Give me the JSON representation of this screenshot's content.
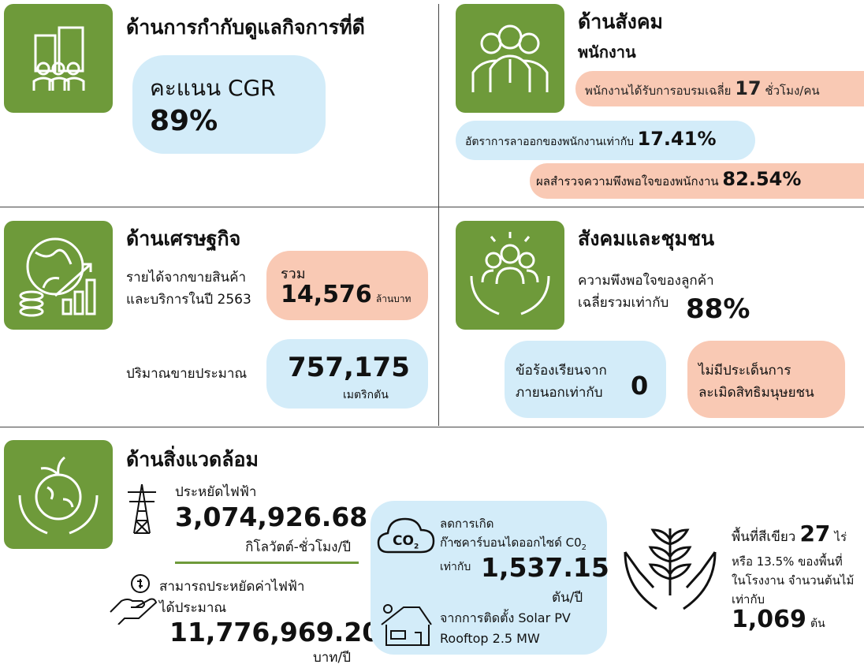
{
  "governance": {
    "title": "ด้านการกำกับดูแลกิจการที่ดี",
    "label": "คะแนน CGR",
    "value": "89%"
  },
  "social": {
    "title": "ด้านสังคม",
    "subtitle": "พนักงาน",
    "items": [
      {
        "text": "พนักงานได้รับการอบรมเฉลี่ย",
        "value": "17",
        "unit": "ชั่วโมง/คน"
      },
      {
        "text": "อัตราการลาออกของพนักงานเท่ากับ",
        "value": "17.41%"
      },
      {
        "text": "ผลสำรวจความพึงพอใจของพนักงาน",
        "value": "82.54%"
      }
    ]
  },
  "economy": {
    "title": "ด้านเศรษฐกิจ",
    "revenue_label": [
      "รายได้จากขายสินค้า",
      "และบริการในปี 2563"
    ],
    "revenue_prefix": "รวม",
    "revenue_value": "14,576",
    "revenue_unit": "ล้านบาท",
    "volume_label": "ปริมาณขายประมาณ",
    "volume_value": "757,175",
    "volume_unit": "เมตริกตัน"
  },
  "community": {
    "title": "สังคมและชุมชน",
    "satisfaction_label": [
      "ความพึงพอใจของลูกค้า",
      "เฉลี่ยรวมเท่ากับ"
    ],
    "satisfaction_value": "88%",
    "complaint_label": [
      "ข้อร้องเรียนจาก",
      "ภายนอกเท่ากับ"
    ],
    "complaint_value": "0",
    "rights": [
      "ไม่มีประเด็นการ",
      "ละเมิดสิทธิมนุษยชน"
    ]
  },
  "environment": {
    "title": "ด้านสิ่งแวดล้อม",
    "electricity": {
      "label": "ประหยัดไฟฟ้า",
      "value": "3,074,926.68",
      "unit": "กิโลวัตต์-ชั่วโมง/ปี"
    },
    "cost": {
      "label": [
        "สามารถประหยัดค่าไฟฟ้า",
        "ได้ประมาณ"
      ],
      "value": "11,776,969.20",
      "unit": "บาท/ปี"
    },
    "carbon": {
      "icon_text": "CO",
      "icon_sub": "2",
      "line1": "ลดการเกิด",
      "line2": "ก๊าซคาร์บอนไดออกไซด์ C0",
      "line2_sub": "2",
      "line3": "เท่ากับ",
      "value": "1,537.15",
      "unit": "ตัน/ปี",
      "solar": [
        "จากการติดตั้ง Solar PV",
        "Rooftop 2.5 MW"
      ]
    },
    "green": {
      "label": "พื้นที่สีเขียว",
      "value": "27",
      "unit": "ไร่",
      "lines": [
        "หรือ 13.5% ของพื้นที่",
        "ในโรงงาน จำนวนต้นไม้",
        "เท่ากับ"
      ],
      "trees": "1,069",
      "trees_unit": "ต้น"
    }
  }
}
